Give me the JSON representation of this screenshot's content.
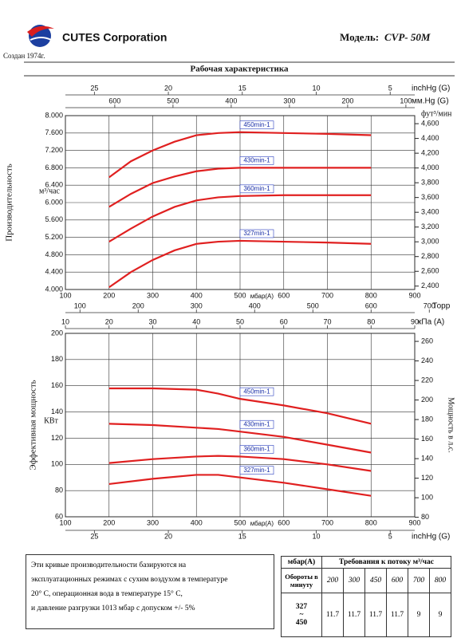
{
  "header": {
    "company": "CUTES Corporation",
    "founded": "Создан 1974г.",
    "model_label": "Модель:",
    "model": "CVP- 50M"
  },
  "chart_data": [
    {
      "type": "line",
      "title": "Рабочая характеристика",
      "y_label": "Производительность",
      "y_unit": "м³/час",
      "y2_label": "фут³/мин",
      "x_label": "мбар(A)",
      "x": [
        200,
        250,
        300,
        350,
        400,
        450,
        500,
        600,
        700,
        800
      ],
      "xlim": [
        100,
        900
      ],
      "xticks": [
        100,
        200,
        300,
        400,
        500,
        600,
        700,
        800,
        900
      ],
      "ylim": [
        4000,
        8000
      ],
      "yticks": [
        {
          "value": 4000,
          "label": "4.000"
        },
        {
          "value": 4400,
          "label": "4.400"
        },
        {
          "value": 4800,
          "label": "4.800"
        },
        {
          "value": 5200,
          "label": "5.200"
        },
        {
          "value": 5600,
          "label": "5.600"
        },
        {
          "value": 6000,
          "label": "6.000"
        },
        {
          "value": 6400,
          "label": "6.400"
        },
        {
          "value": 6800,
          "label": "6.800"
        },
        {
          "value": 7200,
          "label": "7.200"
        },
        {
          "value": 7600,
          "label": "7.600"
        },
        {
          "value": 8000,
          "label": "8.000"
        }
      ],
      "y2lim": [
        2354,
        4709
      ],
      "y2ticks": [
        {
          "value": 2400,
          "label": "2,400"
        },
        {
          "value": 2600,
          "label": "2,600"
        },
        {
          "value": 2800,
          "label": "2,800"
        },
        {
          "value": 3000,
          "label": "3,000"
        },
        {
          "value": 3200,
          "label": "3,200"
        },
        {
          "value": 3400,
          "label": "3,400"
        },
        {
          "value": 3600,
          "label": "3,600"
        },
        {
          "value": 3800,
          "label": "3,800"
        },
        {
          "value": 4000,
          "label": "4,000"
        },
        {
          "value": 4200,
          "label": "4,200"
        },
        {
          "value": 4400,
          "label": "4,400"
        },
        {
          "value": 4600,
          "label": "4,600"
        }
      ],
      "top_axes": [
        {
          "label": "inchHg (G)",
          "lim": [
            26.96,
            3.34
          ],
          "ticks": [
            25,
            20,
            15,
            10,
            5
          ]
        },
        {
          "label": "мм.Hg (G)",
          "lim": [
            684.8,
            84.8
          ],
          "ticks": [
            600,
            500,
            400,
            300,
            200,
            100
          ]
        }
      ],
      "grid": true,
      "series": [
        {
          "name": "450min-1",
          "color": "#e02020",
          "values": [
            6580,
            6950,
            7200,
            7400,
            7550,
            7600,
            7620,
            7600,
            7580,
            7550
          ]
        },
        {
          "name": "430min-1",
          "color": "#e02020",
          "values": [
            5900,
            6200,
            6450,
            6600,
            6720,
            6780,
            6800,
            6800,
            6800,
            6800
          ]
        },
        {
          "name": "360min-1",
          "color": "#e02020",
          "values": [
            5100,
            5400,
            5680,
            5900,
            6050,
            6120,
            6150,
            6170,
            6170,
            6170
          ]
        },
        {
          "name": "327min-1",
          "color": "#e02020",
          "values": [
            4050,
            4400,
            4680,
            4900,
            5050,
            5100,
            5120,
            5100,
            5080,
            5050
          ]
        }
      ]
    },
    {
      "type": "line",
      "y_label": "Эффективная мощность",
      "y_unit": "КВт",
      "y2_label": "Мощность в л.с.",
      "x_label": "мбар(A)",
      "x": [
        200,
        300,
        400,
        450,
        500,
        600,
        700,
        800
      ],
      "xlim": [
        100,
        900
      ],
      "xticks": [
        100,
        200,
        300,
        400,
        500,
        600,
        700,
        800,
        900
      ],
      "ylim": [
        60,
        200
      ],
      "yticks": [
        60,
        80,
        100,
        120,
        140,
        160,
        180,
        200
      ],
      "y2lim": [
        80.5,
        268.2
      ],
      "y2ticks": [
        80,
        100,
        120,
        140,
        160,
        180,
        200,
        220,
        240,
        260
      ],
      "top_axes": [
        {
          "label": "Торр",
          "lim": [
            75,
            675
          ],
          "ticks": [
            100,
            200,
            300,
            400,
            500,
            600,
            700
          ]
        },
        {
          "label": "кПа (A)",
          "lim": [
            10,
            90
          ],
          "ticks": [
            10,
            20,
            30,
            40,
            50,
            60,
            70,
            80,
            90
          ]
        }
      ],
      "bottom_axes": [
        {
          "label": "inchHg (G)",
          "lim": [
            26.96,
            3.34
          ],
          "ticks": [
            25,
            20,
            15,
            10,
            5
          ]
        }
      ],
      "grid": true,
      "series": [
        {
          "name": "450min-1",
          "color": "#e02020",
          "values": [
            158,
            158,
            157,
            154,
            150,
            145,
            139,
            131
          ]
        },
        {
          "name": "430min-1",
          "color": "#e02020",
          "values": [
            131,
            130,
            128,
            127,
            125,
            121,
            115,
            109
          ]
        },
        {
          "name": "360min-1",
          "color": "#e02020",
          "values": [
            101,
            104,
            106,
            106.5,
            106,
            104,
            100,
            95
          ]
        },
        {
          "name": "327min-1",
          "color": "#e02020",
          "values": [
            85,
            89,
            92,
            92,
            90,
            86,
            81,
            76
          ]
        }
      ]
    }
  ],
  "note": [
    "Эти кривые производительности базируются на",
    "эксплуатационных режимах с сухим воздухом в температуре",
    "20° C, операционная вода в температуре 15° C,",
    "и давление разгрузки 1013 мбар с допуском +/- 5%"
  ],
  "table": {
    "header": [
      "мбар(A)",
      "Требования к потоку м³/час"
    ],
    "rows": [
      {
        "label": "Обороты в минуту",
        "values": [
          200,
          300,
          450,
          600,
          700,
          800
        ]
      },
      {
        "label": [
          "327",
          "~",
          "450"
        ],
        "values": [
          11.7,
          11.7,
          11.7,
          11.7,
          9,
          9
        ]
      }
    ]
  }
}
